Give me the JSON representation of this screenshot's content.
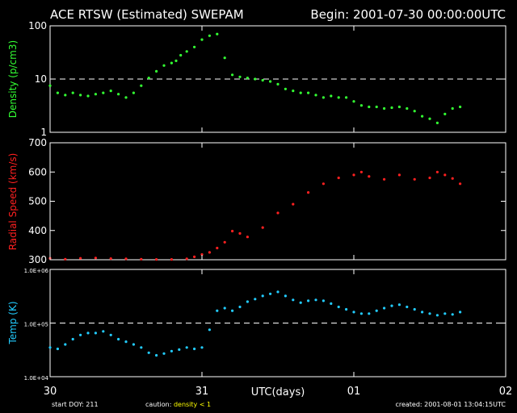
{
  "header": {
    "title": "ACE RTSW (Estimated) SWEPAM",
    "begin": "Begin: 2001-07-30 00:00:00UTC"
  },
  "footer": {
    "start_doy": "start DOY: 211",
    "caution_label": "caution:",
    "caution_value": "density < 1",
    "created": "created: 2001-08-01 13:04:15UTC"
  },
  "colors": {
    "background": "#000000",
    "frame": "#ffffff",
    "density": "#33ff33",
    "speed": "#ff2020",
    "temp": "#22ccff",
    "caution": "#ffff00"
  },
  "chart_data": [
    {
      "type": "scatter",
      "panel": "density",
      "ylabel": "Density (p/cm3)",
      "yscale": "log",
      "ylim": [
        1,
        100
      ],
      "yticks": [
        "1",
        "10",
        "100"
      ],
      "reference_line": 10,
      "x_unit": "days since start",
      "x": [
        0.0,
        0.05,
        0.1,
        0.15,
        0.2,
        0.25,
        0.3,
        0.35,
        0.4,
        0.45,
        0.5,
        0.55,
        0.6,
        0.65,
        0.7,
        0.75,
        0.8,
        0.83,
        0.86,
        0.9,
        0.95,
        1.0,
        1.05,
        1.1,
        1.15,
        1.2,
        1.25,
        1.3,
        1.35,
        1.4,
        1.45,
        1.5,
        1.55,
        1.6,
        1.65,
        1.7,
        1.75,
        1.8,
        1.85,
        1.9,
        1.95,
        2.0,
        2.05,
        2.1,
        2.15,
        2.2,
        2.25,
        2.3,
        2.35,
        2.4,
        2.45,
        2.5,
        2.55,
        2.6,
        2.65,
        2.7
      ],
      "y": [
        7.5,
        5.5,
        5.0,
        5.5,
        5.0,
        4.8,
        5.2,
        5.5,
        6.0,
        5.2,
        4.5,
        5.5,
        7.5,
        10.5,
        14,
        18,
        20,
        22,
        28,
        33,
        40,
        55,
        65,
        70,
        25,
        12,
        11,
        10.5,
        10,
        9.5,
        9,
        8,
        6.5,
        6,
        5.5,
        5.5,
        5,
        4.5,
        4.8,
        4.5,
        4.5,
        3.8,
        3.2,
        3.0,
        3.0,
        2.8,
        2.9,
        3.0,
        2.8,
        2.5,
        2.0,
        1.8,
        1.5,
        2.2,
        2.8,
        3.0
      ]
    },
    {
      "type": "scatter",
      "panel": "speed",
      "ylabel": "Radial Speed (km/s)",
      "ylim": [
        300,
        700
      ],
      "yticks": [
        "300",
        "400",
        "500",
        "600",
        "700"
      ],
      "x_unit": "days since start",
      "x": [
        0.0,
        0.1,
        0.2,
        0.3,
        0.4,
        0.5,
        0.6,
        0.7,
        0.8,
        0.9,
        0.95,
        1.0,
        1.05,
        1.1,
        1.15,
        1.2,
        1.25,
        1.3,
        1.4,
        1.5,
        1.6,
        1.7,
        1.8,
        1.9,
        2.0,
        2.05,
        2.1,
        2.2,
        2.3,
        2.4,
        2.5,
        2.55,
        2.6,
        2.65,
        2.7
      ],
      "y": [
        305,
        302,
        305,
        306,
        304,
        303,
        302,
        301,
        301,
        303,
        310,
        318,
        325,
        340,
        360,
        398,
        390,
        378,
        410,
        460,
        490,
        530,
        560,
        580,
        590,
        600,
        585,
        575,
        590,
        575,
        580,
        600,
        590,
        578,
        560
      ]
    },
    {
      "type": "scatter",
      "panel": "temp",
      "ylabel": "Temp (K)",
      "yscale": "log",
      "ylim": [
        10000,
        1000000
      ],
      "yticks": [
        "1.0E+04",
        "1.0E+05",
        "1.0E+06"
      ],
      "reference_line": 100000,
      "x_unit": "days since start",
      "x": [
        0.0,
        0.05,
        0.1,
        0.15,
        0.2,
        0.25,
        0.3,
        0.35,
        0.4,
        0.45,
        0.5,
        0.55,
        0.6,
        0.65,
        0.7,
        0.75,
        0.8,
        0.85,
        0.9,
        0.95,
        1.0,
        1.05,
        1.1,
        1.15,
        1.2,
        1.25,
        1.3,
        1.35,
        1.4,
        1.45,
        1.5,
        1.55,
        1.6,
        1.65,
        1.7,
        1.75,
        1.8,
        1.85,
        1.9,
        1.95,
        2.0,
        2.05,
        2.1,
        2.15,
        2.2,
        2.25,
        2.3,
        2.35,
        2.4,
        2.45,
        2.5,
        2.55,
        2.6,
        2.65,
        2.7
      ],
      "y": [
        35000,
        33000,
        40000,
        50000,
        60000,
        65000,
        65000,
        70000,
        60000,
        50000,
        45000,
        40000,
        35000,
        28000,
        25000,
        27000,
        30000,
        32000,
        35000,
        33000,
        35000,
        75000,
        170000,
        190000,
        170000,
        200000,
        250000,
        280000,
        320000,
        350000,
        380000,
        320000,
        270000,
        240000,
        260000,
        270000,
        260000,
        230000,
        200000,
        180000,
        160000,
        150000,
        150000,
        170000,
        190000,
        210000,
        220000,
        200000,
        180000,
        160000,
        150000,
        140000,
        150000,
        145000,
        160000
      ]
    }
  ],
  "xaxis": {
    "label": "UTC(days)",
    "ticks": [
      {
        "label": "30",
        "value": 0
      },
      {
        "label": "31",
        "value": 1
      },
      {
        "label": "01",
        "value": 2
      },
      {
        "label": "02",
        "value": 3
      }
    ],
    "xlim": [
      0,
      3
    ]
  }
}
